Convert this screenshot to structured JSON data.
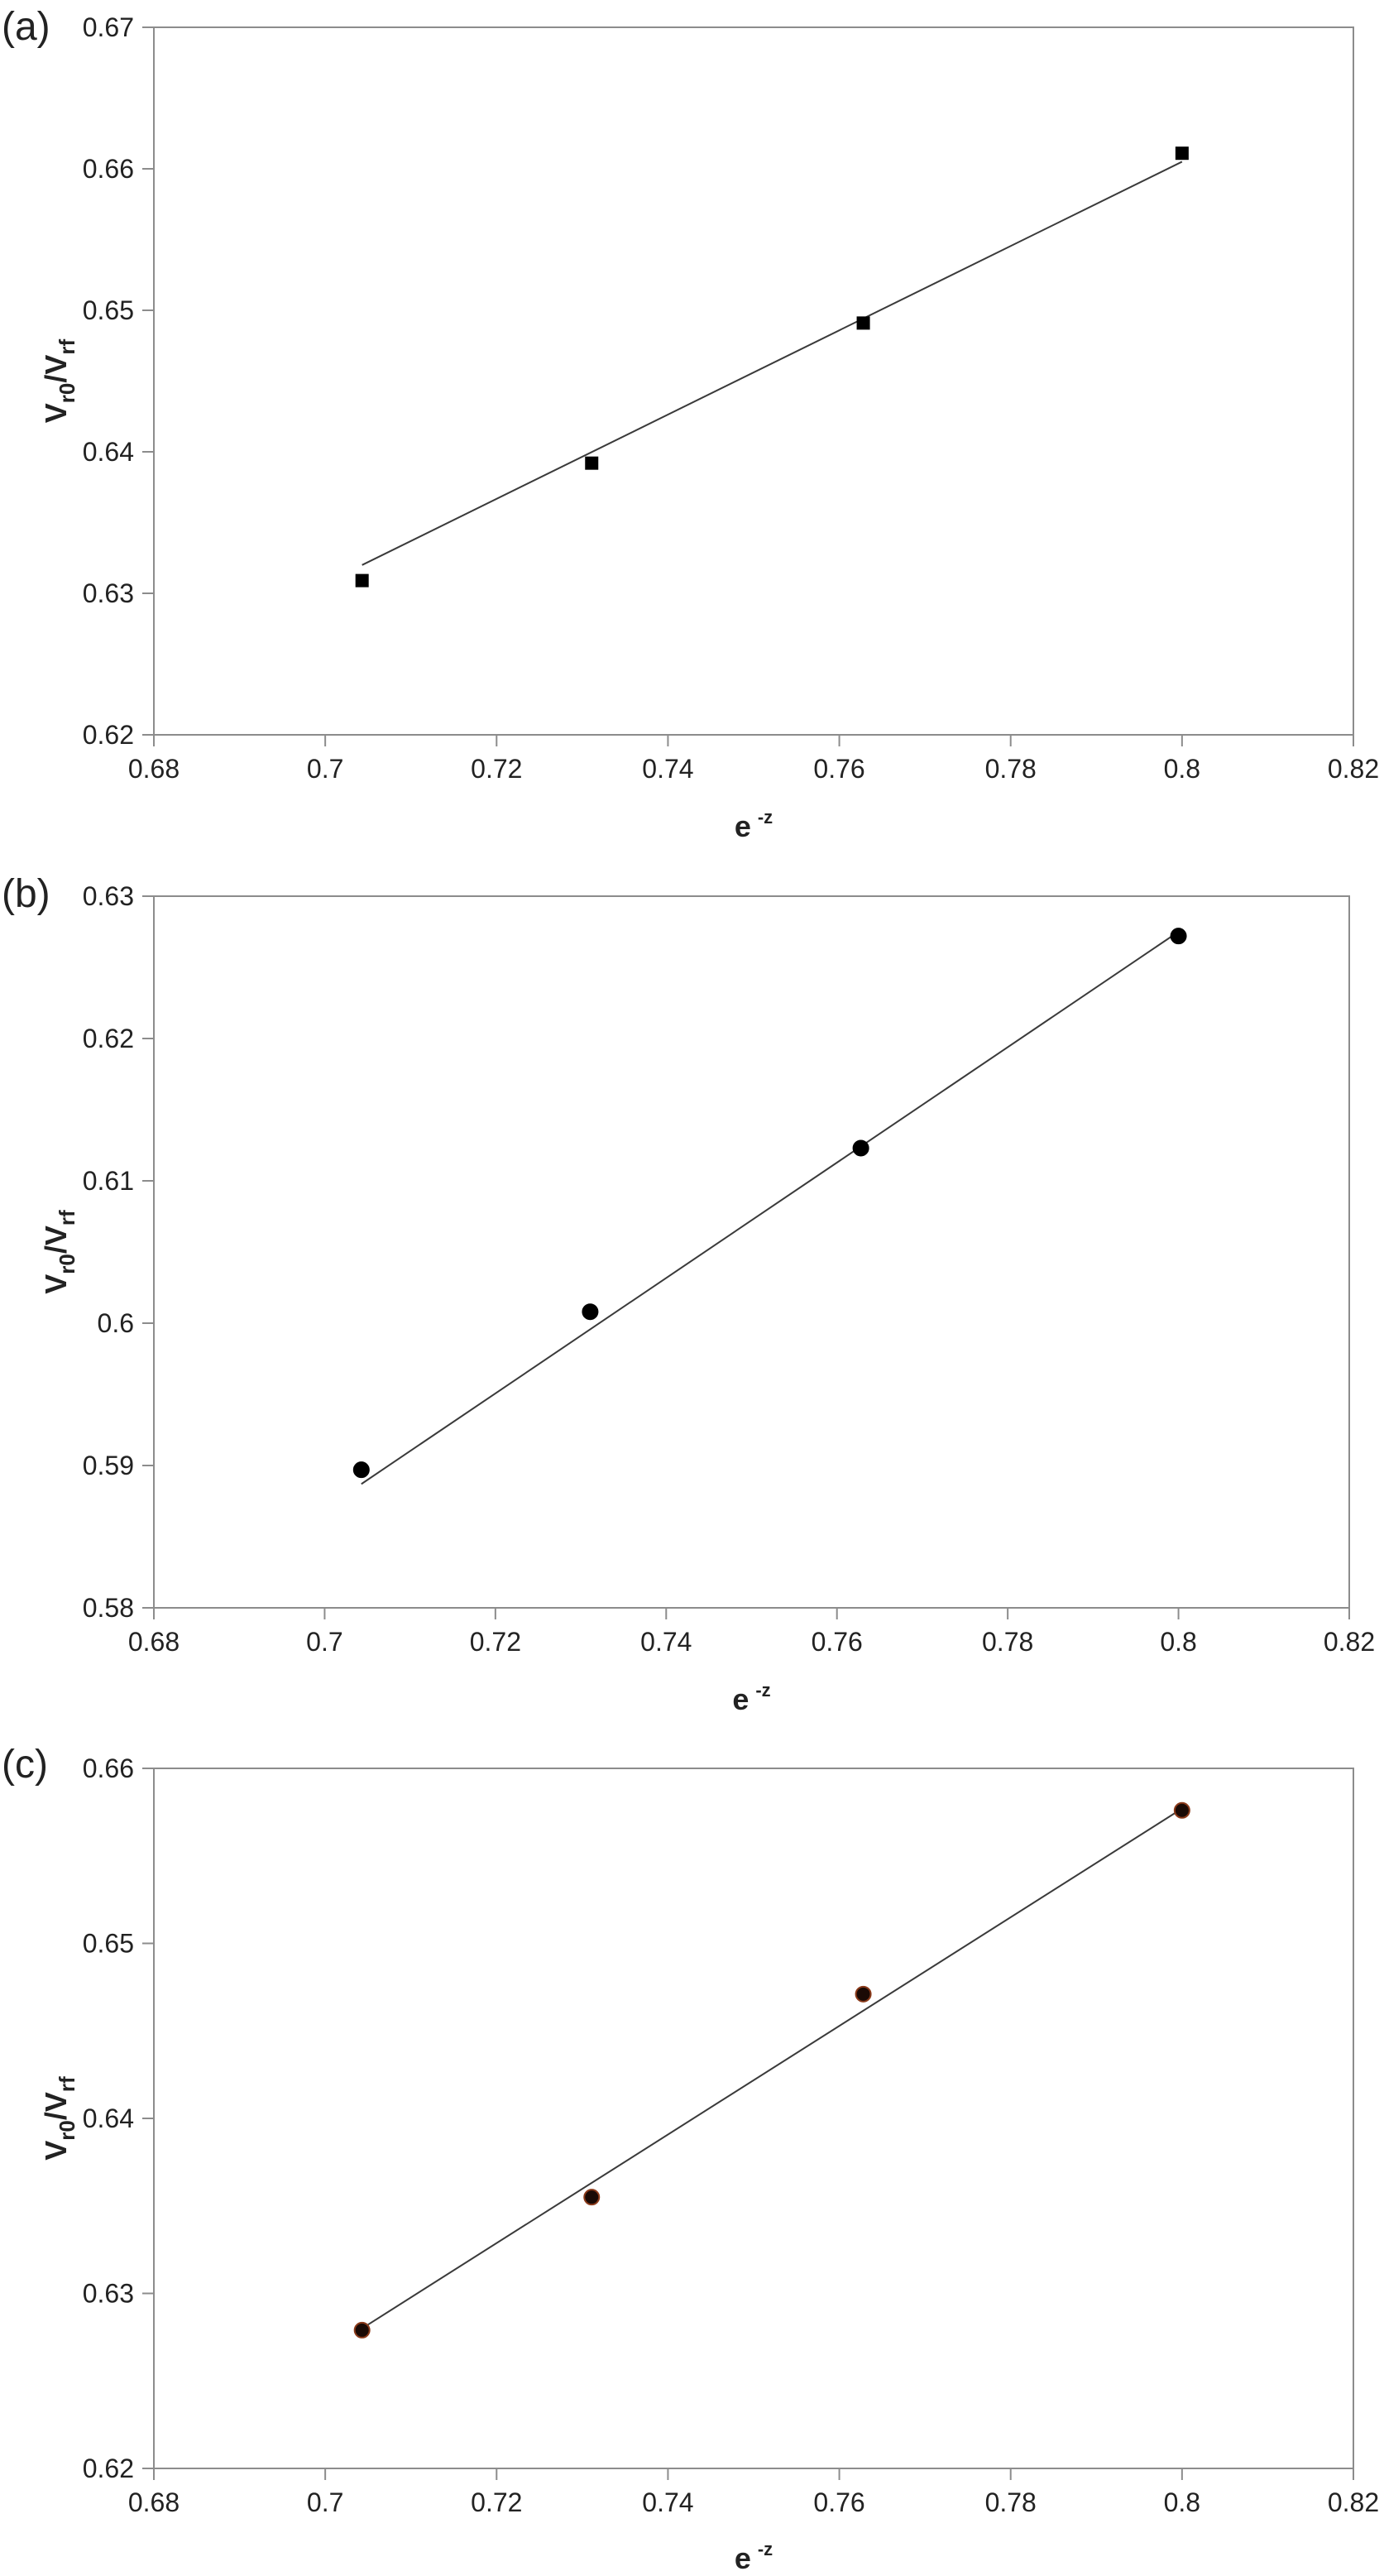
{
  "chart_data": [
    {
      "type": "scatter",
      "panel_label": "(a)",
      "marker": "square",
      "marker_color": "#000000",
      "fit_line": true,
      "x": [
        0.7043,
        0.7311,
        0.7628,
        0.8
      ],
      "y": [
        0.6309,
        0.6392,
        0.6491,
        0.6611
      ],
      "fit": {
        "x": [
          0.7043,
          0.8
        ],
        "y": [
          0.632,
          0.6605
        ]
      },
      "xlim": [
        0.68,
        0.82
      ],
      "ylim": [
        0.62,
        0.67
      ],
      "xticks": [
        "0.68",
        "0.7",
        "0.72",
        "0.74",
        "0.76",
        "0.78",
        "0.8",
        "0.82"
      ],
      "yticks": [
        "0.62",
        "0.63",
        "0.64",
        "0.65",
        "0.66",
        "0.67"
      ],
      "xlabel": {
        "base": "e",
        "sup": "-z"
      },
      "ylabel": {
        "p1": "V",
        "s1": "r0",
        "sep": "/V",
        "s2": "rf"
      },
      "grid": false,
      "legend": "none"
    },
    {
      "type": "scatter",
      "panel_label": "(b)",
      "marker": "circle",
      "marker_color": "#000000",
      "fit_line": true,
      "x": [
        0.7043,
        0.7311,
        0.7628,
        0.8
      ],
      "y": [
        0.5897,
        0.6008,
        0.6123,
        0.6272
      ],
      "fit": {
        "x": [
          0.7043,
          0.8
        ],
        "y": [
          0.5887,
          0.6275
        ]
      },
      "xlim": [
        0.68,
        0.82
      ],
      "ylim": [
        0.58,
        0.63
      ],
      "xticks": [
        "0.68",
        "0.7",
        "0.72",
        "0.74",
        "0.76",
        "0.78",
        "0.8",
        "0.82"
      ],
      "yticks": [
        "0.58",
        "0.59",
        "0.6",
        "0.61",
        "0.62",
        "0.63"
      ],
      "xlabel": {
        "base": "e",
        "sup": "-z"
      },
      "ylabel": {
        "p1": "V",
        "s1": "r0",
        "sep": "/V",
        "s2": "rf"
      },
      "grid": false,
      "legend": "none"
    },
    {
      "type": "scatter",
      "panel_label": "(c)",
      "marker": "circle",
      "marker_color": "#1a0a05",
      "marker_edge": "#8a3a1a",
      "fit_line": true,
      "x": [
        0.7043,
        0.7311,
        0.7628,
        0.8
      ],
      "y": [
        0.6279,
        0.6355,
        0.6471,
        0.6576
      ],
      "fit": {
        "x": [
          0.7043,
          0.8
        ],
        "y": [
          0.628,
          0.6577
        ]
      },
      "xlim": [
        0.68,
        0.82
      ],
      "ylim": [
        0.62,
        0.66
      ],
      "xticks": [
        "0.68",
        "0.7",
        "0.72",
        "0.74",
        "0.76",
        "0.78",
        "0.8",
        "0.82"
      ],
      "yticks": [
        "0.62",
        "0.63",
        "0.64",
        "0.65",
        "0.66"
      ],
      "xlabel": {
        "base": "e",
        "sup": "-z"
      },
      "ylabel": {
        "p1": "V",
        "s1": "r0",
        "sep": "/V",
        "s2": "rf"
      },
      "grid": false,
      "legend": "none"
    }
  ]
}
